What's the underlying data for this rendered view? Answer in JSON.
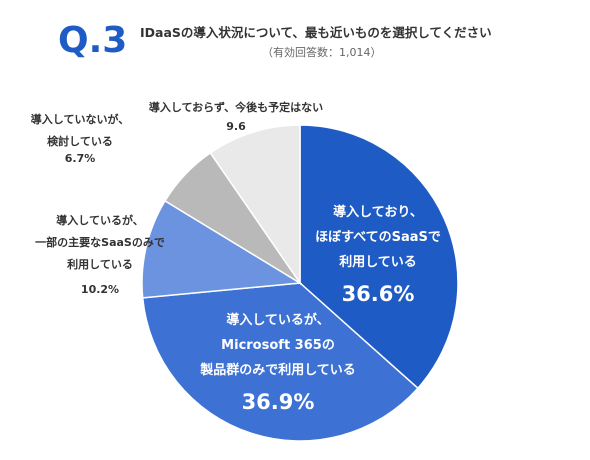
{
  "chart_data": {
    "type": "pie",
    "badge": "Q.3",
    "title": "IDaaSの導入状況について、最も近いものを選択してください",
    "subtitle": "（有効回答数：1,014）",
    "categories": [
      "導入しており、\nほぼすべてのSaaSで\n利用している",
      "導入しているが、\nMicrosoft 365の\n製品群のみで利用している",
      "導入しているが、\n一部の主要なSaaSのみで\n利用している",
      "導入していないが、\n検討している",
      "導入しておらず、今後も予定はない"
    ],
    "values": [
      36.6,
      36.9,
      10.2,
      6.7,
      9.6
    ],
    "value_labels": [
      "36.6%",
      "36.9%",
      "10.2%",
      "6.7%",
      "9.6"
    ],
    "colors": [
      "#1f5bc4",
      "#3d72d4",
      "#6b93df",
      "#b9b9b9",
      "#e9e9e9"
    ]
  }
}
